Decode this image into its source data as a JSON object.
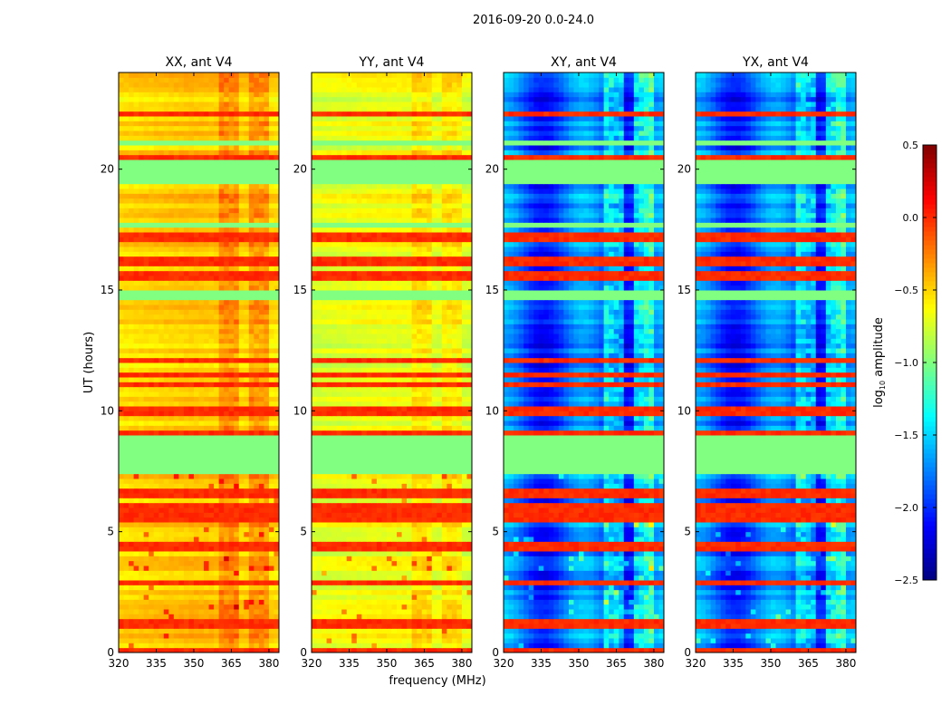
{
  "chart_data": {
    "type": "heatmap",
    "title": "2016-09-20 0.0-24.0",
    "xlabel": "frequency (MHz)",
    "ylabel": "UT (hours)",
    "xlim": [
      320,
      384
    ],
    "ylim": [
      0,
      24
    ],
    "xticks": [
      "320",
      "335",
      "350",
      "365",
      "380"
    ],
    "xtick_values": [
      320,
      335,
      350,
      365,
      380
    ],
    "yticks": [
      "0",
      "5",
      "10",
      "15",
      "20"
    ],
    "ytick_values": [
      0,
      5,
      10,
      15,
      20
    ],
    "panels": [
      {
        "title": "XX, ant V4",
        "base_log10_amplitude": -0.45,
        "rfi_boost": 0.2
      },
      {
        "title": "YY, ant V4",
        "base_log10_amplitude": -0.65,
        "rfi_boost": 0.15
      },
      {
        "title": "XY, ant V4",
        "base_log10_amplitude": -1.85,
        "rfi_boost": 0.5
      },
      {
        "title": "YX, ant V4",
        "base_log10_amplitude": -1.85,
        "rfi_boost": 0.5
      }
    ],
    "flagged_hours": [
      [
        7.5,
        8.9
      ],
      [
        19.3,
        20.4
      ],
      [
        14.65,
        14.9
      ],
      [
        17.6,
        17.75
      ],
      [
        21.0,
        21.1
      ]
    ],
    "flagged_value": -1.0,
    "strong_stripe_hours": [
      0.05,
      1.2,
      2.9,
      3.6,
      4.4,
      5.2,
      5.6,
      6.0,
      6.6,
      6.8,
      9.0,
      10.0,
      11.2,
      11.5,
      12.2,
      15.6,
      16.2,
      17.1,
      17.3,
      18.6,
      20.5,
      22.3,
      22.6
    ],
    "stripe_value": 0.0,
    "rfi_bands_mhz": [
      [
        361,
        368
      ],
      [
        372,
        375
      ],
      [
        377,
        380
      ]
    ],
    "colorbar": {
      "label": "log10 amplitude",
      "label_main": "log",
      "label_sub": "10",
      "label_rest": " amplitude",
      "range": [
        -2.5,
        0.5
      ],
      "ticks": [
        "0.5",
        "0.0",
        "−0.5",
        "−1.0",
        "−1.5",
        "−2.0",
        "−2.5"
      ],
      "tick_values": [
        0.5,
        0.0,
        -0.5,
        -1.0,
        -1.5,
        -2.0,
        -2.5
      ],
      "colormap": "jet"
    }
  }
}
